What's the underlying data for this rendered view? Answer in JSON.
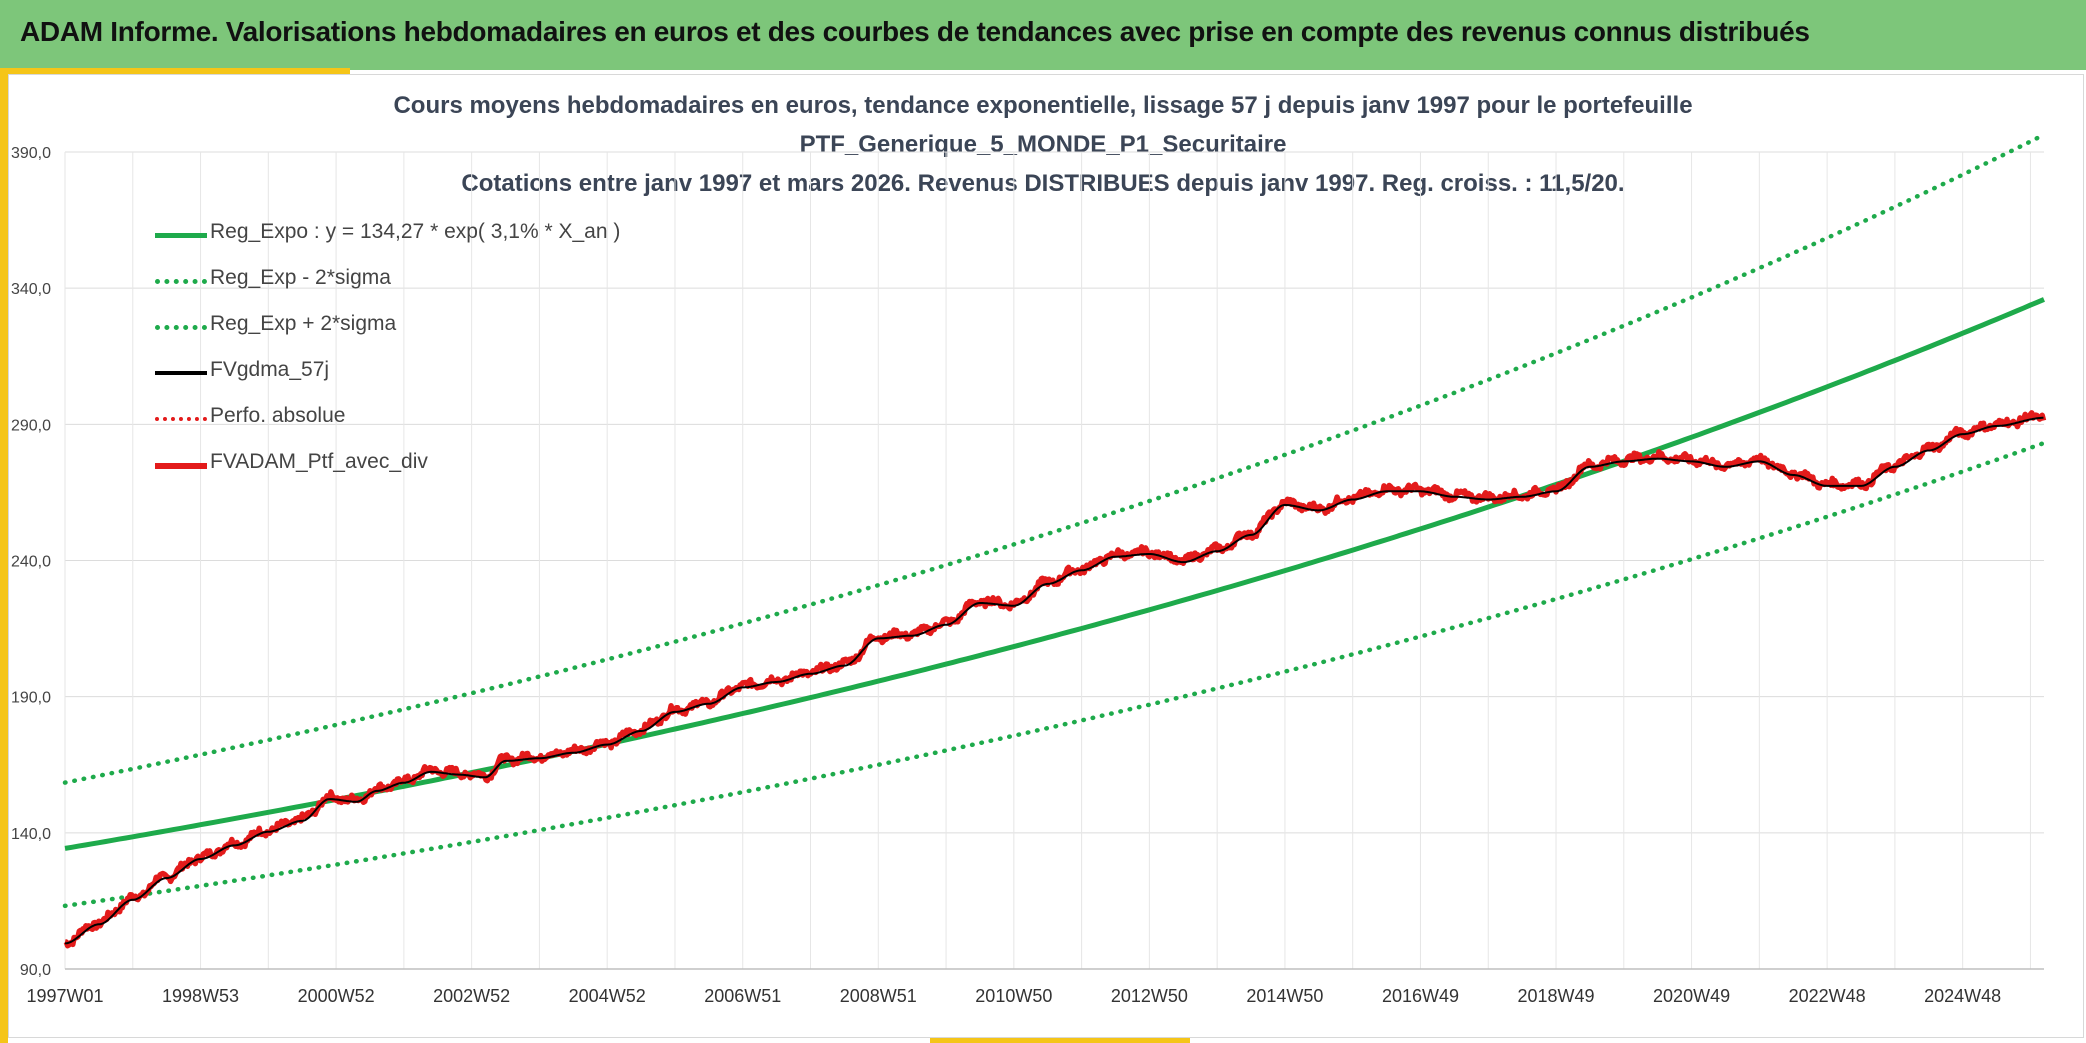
{
  "header": {
    "title": "ADAM Informe. Valorisations hebdomadaires en euros et des courbes de tendances avec prise en compte des revenus connus distribués"
  },
  "chart_data": {
    "type": "line",
    "title_lines": [
      "Cours moyens hebdomadaires en euros, tendance exponentielle, lissage 57 j depuis janv 1997 pour le portefeuille",
      "PTF_Generique_5_MONDE_P1_Securitaire",
      "Cotations entre janv 1997 et mars 2026. Revenus DISTRIBUES depuis janv 1997. Reg. croiss. : 11,5/20."
    ],
    "ylim": [
      90,
      390
    ],
    "yticks": [
      "90,0",
      "140,0",
      "190,0",
      "240,0",
      "290,0",
      "340,0",
      "390,0"
    ],
    "xlim": [
      1997.0,
      2026.2
    ],
    "xtick_labels": [
      "1997W01",
      "1998W53",
      "2000W52",
      "2002W52",
      "2004W52",
      "2006W51",
      "2008W51",
      "2010W50",
      "2012W50",
      "2014W50",
      "2016W49",
      "2018W49",
      "2020W49",
      "2022W48",
      "2024W48"
    ],
    "xtick_years": [
      1997.0,
      1999.0,
      2001.0,
      2003.0,
      2005.0,
      2007.0,
      2009.0,
      2011.0,
      2013.0,
      2015.0,
      2017.0,
      2019.0,
      2021.0,
      2023.0,
      2025.0
    ],
    "regression": {
      "a": 134.27,
      "rate": 0.0314,
      "lower_factor": 0.843,
      "upper_factor": 1.18
    },
    "series": [
      {
        "name": "Reg_Expo : y = 134,27 * exp( 3,1% *  X_an )",
        "color": "#1eaa4b",
        "style": "solid",
        "kind": "reg"
      },
      {
        "name": "Reg_Exp - 2*sigma",
        "color": "#1eaa4b",
        "style": "dotted",
        "kind": "reg_low"
      },
      {
        "name": "Reg_Exp + 2*sigma",
        "color": "#1eaa4b",
        "style": "dotted",
        "kind": "reg_high"
      },
      {
        "name": "FVgdma_57j",
        "color": "#000000",
        "style": "solid",
        "kind": "smooth"
      },
      {
        "name": "Perfo. absolue",
        "color": "#e31b1b",
        "style": "dotted",
        "kind": "none"
      },
      {
        "name": "FVADAM_Ptf_avec_div",
        "color": "#e31b1b",
        "style": "solid-thick",
        "kind": "price"
      }
    ],
    "price_points": [
      [
        1997.0,
        100
      ],
      [
        1997.5,
        107
      ],
      [
        1998.0,
        116
      ],
      [
        1998.5,
        124
      ],
      [
        1999.0,
        131
      ],
      [
        1999.5,
        136
      ],
      [
        2000.0,
        141
      ],
      [
        2000.5,
        145
      ],
      [
        2000.9,
        153
      ],
      [
        2001.3,
        152
      ],
      [
        2001.6,
        156
      ],
      [
        2002.0,
        159
      ],
      [
        2002.4,
        163
      ],
      [
        2002.8,
        162
      ],
      [
        2003.2,
        161
      ],
      [
        2003.5,
        167
      ],
      [
        2004.0,
        168
      ],
      [
        2004.5,
        170
      ],
      [
        2005.0,
        173
      ],
      [
        2005.5,
        178
      ],
      [
        2006.0,
        185
      ],
      [
        2006.5,
        188
      ],
      [
        2007.0,
        194
      ],
      [
        2007.5,
        196
      ],
      [
        2008.0,
        199
      ],
      [
        2008.5,
        202
      ],
      [
        2009.0,
        212
      ],
      [
        2009.5,
        213
      ],
      [
        2010.0,
        217
      ],
      [
        2010.5,
        225
      ],
      [
        2011.0,
        224
      ],
      [
        2011.5,
        232
      ],
      [
        2012.0,
        237
      ],
      [
        2012.5,
        242
      ],
      [
        2013.0,
        243
      ],
      [
        2013.5,
        240
      ],
      [
        2014.0,
        244
      ],
      [
        2014.5,
        250
      ],
      [
        2015.0,
        261
      ],
      [
        2015.5,
        259
      ],
      [
        2016.0,
        263
      ],
      [
        2016.5,
        266
      ],
      [
        2017.0,
        266
      ],
      [
        2017.5,
        264
      ],
      [
        2018.0,
        263
      ],
      [
        2018.5,
        264
      ],
      [
        2019.0,
        266
      ],
      [
        2019.5,
        275
      ],
      [
        2020.0,
        277
      ],
      [
        2020.5,
        278
      ],
      [
        2021.0,
        277
      ],
      [
        2021.5,
        275
      ],
      [
        2022.0,
        277
      ],
      [
        2022.5,
        272
      ],
      [
        2023.0,
        268
      ],
      [
        2023.5,
        268
      ],
      [
        2024.0,
        275
      ],
      [
        2024.5,
        281
      ],
      [
        2025.0,
        287
      ],
      [
        2025.5,
        290
      ],
      [
        2026.2,
        293
      ]
    ]
  }
}
